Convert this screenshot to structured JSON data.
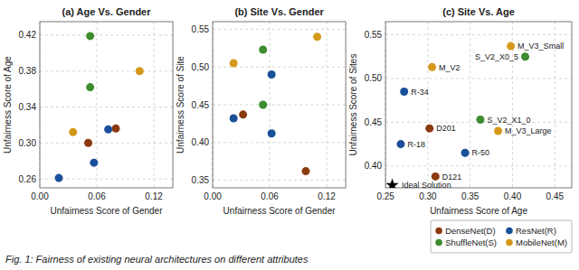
{
  "chart_data": [
    {
      "type": "scatter",
      "title": "(a) Age Vs. Gender",
      "xlabel": "Unfairness Score of Gender",
      "ylabel": "Unfairness Score of Age",
      "xlim": [
        0,
        0.14
      ],
      "ylim": [
        0.25,
        0.435
      ],
      "xticks": [
        {
          "value": 0,
          "label": "0.00"
        },
        0.06,
        0.12
      ],
      "yticks": [
        0.26,
        {
          "value": 0.3,
          "label": "0.30"
        },
        0.34,
        0.38,
        0.42
      ],
      "grid": true,
      "series": [
        {
          "color": "#8b3a10",
          "x": [
            0.051,
            0.08
          ],
          "values": [
            0.3,
            0.316
          ]
        },
        {
          "color": "#3d8c2f",
          "x": [
            0.053,
            0.053
          ],
          "values": [
            0.419,
            0.362
          ]
        },
        {
          "color": "#1a4f99",
          "x": [
            0.02,
            0.072,
            0.057
          ],
          "values": [
            0.261,
            0.315,
            0.278
          ]
        },
        {
          "color": "#d4991a",
          "x": [
            0.035,
            0.105
          ],
          "values": [
            0.312,
            0.38
          ]
        }
      ]
    },
    {
      "type": "scatter",
      "title": "(b) Site Vs. Gender",
      "xlabel": "Unfairness Score of Gender",
      "ylabel": "Unfairness Score of Site",
      "xlim": [
        0,
        0.14
      ],
      "ylim": [
        0.34,
        0.56
      ],
      "xticks": [
        {
          "value": 0,
          "label": "0.00"
        },
        0.06,
        0.12
      ],
      "yticks": [
        0.35,
        {
          "value": 0.4,
          "label": "0.40"
        },
        0.45,
        {
          "value": 0.5,
          "label": "0.50"
        },
        0.55
      ],
      "grid": true,
      "series": [
        {
          "color": "#8b3a10",
          "x": [
            0.032,
            0.098
          ],
          "values": [
            0.437,
            0.362
          ]
        },
        {
          "color": "#3d8c2f",
          "x": [
            0.053,
            0.053
          ],
          "values": [
            0.523,
            0.45
          ]
        },
        {
          "color": "#1a4f99",
          "x": [
            0.022,
            0.062,
            0.062
          ],
          "values": [
            0.432,
            0.49,
            0.412
          ]
        },
        {
          "color": "#d4991a",
          "x": [
            0.022,
            0.11
          ],
          "values": [
            0.505,
            0.54
          ]
        }
      ]
    },
    {
      "type": "scatter",
      "title": "(c) Site Vs. Age",
      "xlabel": "Unfairness Score of Age",
      "ylabel": "Unfairness Score of Sites",
      "xlim": [
        0.25,
        0.47
      ],
      "ylim": [
        0.375,
        0.565
      ],
      "xticks": [
        0.25,
        {
          "value": 0.3,
          "label": "0.30"
        },
        0.35,
        {
          "value": 0.4,
          "label": "0.40"
        },
        0.45
      ],
      "yticks": [
        {
          "value": 0.4,
          "label": "0.40"
        },
        0.45,
        {
          "value": 0.5,
          "label": "0.50"
        },
        0.55
      ],
      "grid": true,
      "legend": "below",
      "series": [
        {
          "name": "DenseNet(D)",
          "color": "#8b3a10",
          "x": [
            0.309,
            0.302
          ],
          "values": [
            0.388,
            0.443
          ],
          "labels": [
            "D121",
            "D201"
          ]
        },
        {
          "name": "ShuffleNet(S)",
          "color": "#3d8c2f",
          "x": [
            0.362,
            0.415
          ],
          "values": [
            0.453,
            0.525
          ],
          "labels": [
            "S_V2_X1_0",
            "S_V2_X0_5"
          ]
        },
        {
          "name": "ResNet(R)",
          "color": "#1a4f99",
          "x": [
            0.272,
            0.268,
            0.344
          ],
          "values": [
            0.485,
            0.425,
            0.415
          ],
          "labels": [
            "R-34",
            "R-18",
            "R-50"
          ]
        },
        {
          "name": "MobileNet(M)",
          "color": "#d4991a",
          "x": [
            0.305,
            0.383,
            0.398
          ],
          "values": [
            0.513,
            0.44,
            0.537
          ],
          "labels": [
            "M_V2",
            "M_V3_Large",
            "M_V3_Small"
          ]
        }
      ],
      "annotations": [
        {
          "text": "Ideal Solution",
          "x": 0.258,
          "y": 0.378,
          "marker": "star"
        }
      ]
    }
  ],
  "caption": "Fig. 1: Fairness of existing neural architectures on different attributes"
}
